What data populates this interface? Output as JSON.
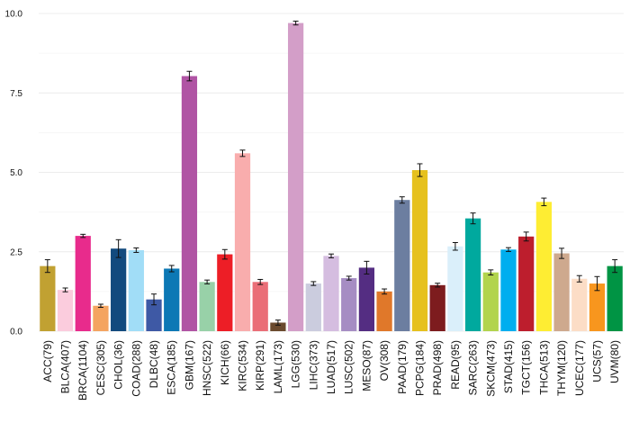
{
  "chart_data": {
    "type": "bar",
    "title": "",
    "xlabel": "",
    "ylabel": "",
    "ylim": [
      0,
      10.3
    ],
    "yticks": [
      0,
      2.5,
      5,
      7.5,
      10
    ],
    "ytick_labels": [
      "0.0",
      "2.5",
      "5.0",
      "7.5",
      "10.0"
    ],
    "grid": true,
    "legend": "none",
    "error_bars": true,
    "categories": [
      "ACC(79)",
      "BLCA(407)",
      "BRCA(1104)",
      "CESC(305)",
      "CHOL(36)",
      "COAD(288)",
      "DLBC(48)",
      "ESCA(185)",
      "GBM(167)",
      "HNSC(522)",
      "KICH(66)",
      "KIRC(534)",
      "KIRP(291)",
      "LAML(173)",
      "LGG(530)",
      "LIHC(373)",
      "LUAD(517)",
      "LUSC(502)",
      "MESO(87)",
      "OV(308)",
      "PAAD(179)",
      "PCPG(184)",
      "PRAD(498)",
      "READ(95)",
      "SARC(263)",
      "SKCM(473)",
      "STAD(415)",
      "TGCT(156)",
      "THCA(513)",
      "THYM(120)",
      "UCEC(177)",
      "UCS(57)",
      "UVM(80)"
    ],
    "values": [
      2.05,
      1.3,
      3.0,
      0.8,
      2.6,
      2.55,
      1.0,
      1.97,
      8.03,
      1.55,
      2.42,
      5.6,
      1.55,
      0.27,
      9.7,
      1.5,
      2.37,
      1.67,
      2.0,
      1.25,
      4.13,
      5.07,
      1.45,
      2.67,
      3.55,
      1.85,
      2.57,
      2.98,
      4.07,
      2.45,
      1.65,
      1.5,
      2.05
    ],
    "errors": [
      0.2,
      0.06,
      0.05,
      0.05,
      0.28,
      0.07,
      0.17,
      0.1,
      0.15,
      0.06,
      0.15,
      0.1,
      0.08,
      0.08,
      0.06,
      0.06,
      0.06,
      0.06,
      0.2,
      0.08,
      0.1,
      0.2,
      0.06,
      0.12,
      0.17,
      0.08,
      0.06,
      0.14,
      0.12,
      0.16,
      0.1,
      0.22,
      0.2
    ],
    "colors": [
      "#C1A132",
      "#FBCCDD",
      "#E82B8C",
      "#F4A460",
      "#124A7E",
      "#A1DDF7",
      "#3E59A5",
      "#0C78B5",
      "#B054A4",
      "#98D1A8",
      "#ED1E26",
      "#F9ADAD",
      "#EA6E77",
      "#6B4A2E",
      "#D39EC8",
      "#CBCCDE",
      "#D5BDE0",
      "#A68DC3",
      "#542D82",
      "#E0782A",
      "#6C7EA0",
      "#E6C11E",
      "#7D1C1E",
      "#DAEFFA",
      "#00A99E",
      "#B2D44D",
      "#00AEEF",
      "#BD1E2D",
      "#FEED33",
      "#CEA98E",
      "#FCDDC6",
      "#F8961E",
      "#009444"
    ]
  }
}
